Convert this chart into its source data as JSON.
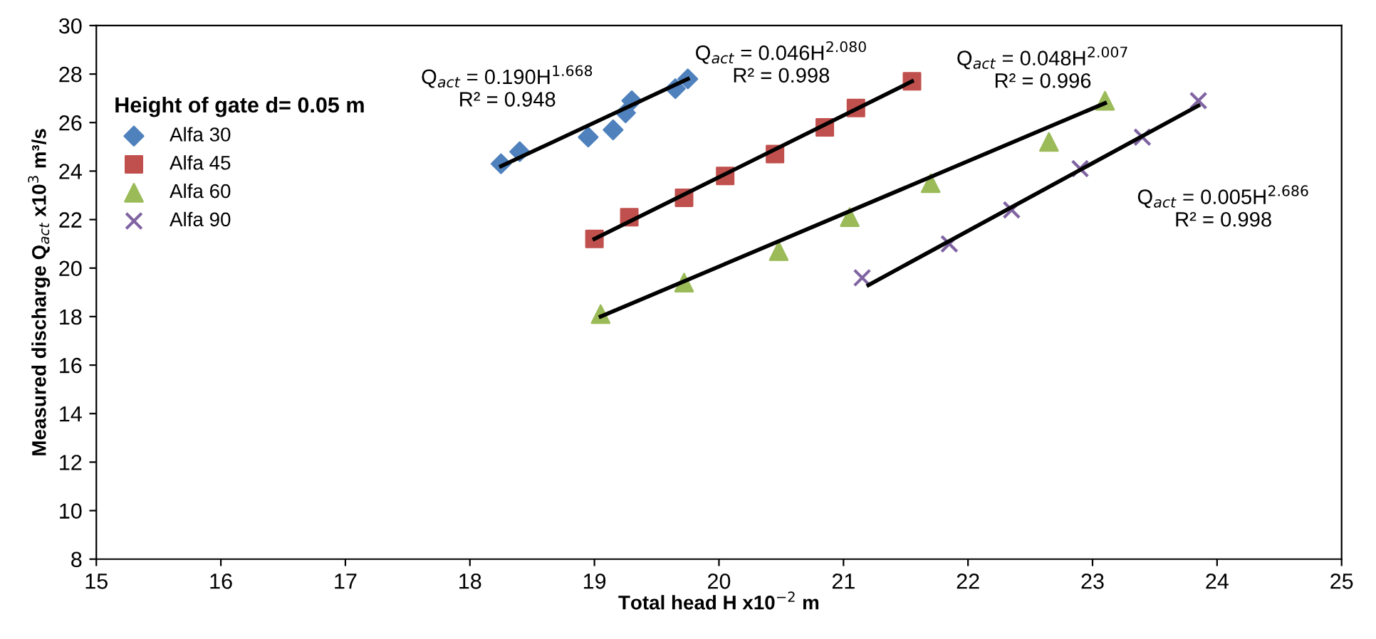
{
  "chart_data": {
    "type": "scatter",
    "xlabel": "Total head H x10$^{−2}$ m",
    "ylabel": "Measured discharge Q$_{act}$ x10$^{3}$ m³/s",
    "legend_title": "Height of gate d= 0.05 m",
    "legend": "top left",
    "grid": false,
    "xlim": [
      15,
      25
    ],
    "xticks": [
      15,
      16,
      17,
      18,
      19,
      20,
      21,
      22,
      23,
      24,
      25
    ],
    "ylim": [
      8,
      30
    ],
    "yticks": [
      8,
      10,
      12,
      14,
      16,
      18,
      20,
      22,
      24,
      26,
      28,
      30
    ],
    "series": [
      {
        "name": "Alfa 30",
        "color": "#4f81bd",
        "marker": "diamond",
        "x": [
          18.25,
          18.4,
          18.95,
          19.15,
          19.25,
          19.3,
          19.65,
          19.75
        ],
        "values": [
          24.3,
          24.8,
          25.4,
          25.7,
          26.4,
          26.9,
          27.4,
          27.8
        ]
      },
      {
        "name": "Alfa 45",
        "color": "#c0504d",
        "marker": "square",
        "x": [
          19.0,
          19.28,
          19.72,
          20.05,
          20.45,
          20.85,
          21.1,
          21.55
        ],
        "values": [
          21.2,
          22.1,
          22.9,
          23.8,
          24.7,
          25.8,
          26.6,
          27.7
        ]
      },
      {
        "name": "Alfa 60",
        "color": "#9bbb59",
        "marker": "triangle",
        "x": [
          19.05,
          19.72,
          20.48,
          21.05,
          21.7,
          22.65,
          23.1
        ],
        "values": [
          18.1,
          19.4,
          20.7,
          22.1,
          23.5,
          25.2,
          26.9
        ]
      },
      {
        "name": "Alfa 90",
        "color": "#8064a2",
        "marker": "cross",
        "x": [
          21.15,
          21.85,
          22.35,
          22.9,
          23.4,
          23.85
        ],
        "values": [
          19.6,
          21.0,
          22.4,
          24.1,
          25.4,
          26.9
        ]
      },
      {
        "type": "line",
        "color": "#000000",
        "marker": "none",
        "x": [
          18.25,
          19.75
        ],
        "values": [
          24.2,
          27.8
        ]
      },
      {
        "type": "line",
        "color": "#000000",
        "marker": "none",
        "x": [
          19.0,
          21.55
        ],
        "values": [
          21.2,
          27.7
        ]
      },
      {
        "type": "line",
        "color": "#000000",
        "marker": "none",
        "x": [
          19.05,
          23.1
        ],
        "values": [
          18.0,
          26.8
        ]
      },
      {
        "type": "line",
        "color": "#000000",
        "marker": "none",
        "x": [
          21.2,
          23.85
        ],
        "values": [
          19.3,
          26.7
        ]
      }
    ],
    "annotations": [
      "Q$_{act}$ = 0.190H$^{1.668}$\nR² = 0.948",
      "Q$_{act}$ = 0.046H$^{2.080}$\nR² = 0.998",
      "Q$_{act}$ = 0.048H$^{2.007}$\nR² = 0.996",
      "Q$_{act}$ = 0.005H$^{2.686}$\nR² = 0.998"
    ]
  }
}
